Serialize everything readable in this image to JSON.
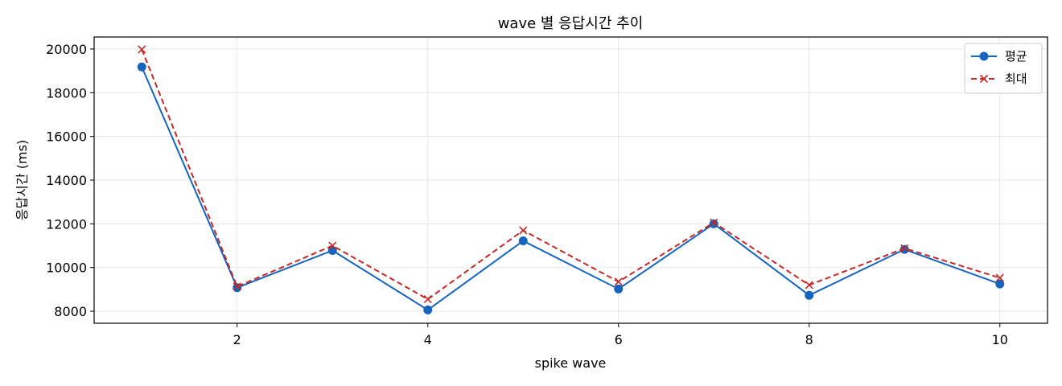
{
  "chart_data": {
    "type": "line",
    "title": "wave 별 응답시간 추이",
    "xlabel": "spike wave",
    "ylabel": "응답시간 (ms)",
    "x": [
      1,
      2,
      3,
      4,
      5,
      6,
      7,
      8,
      9,
      10
    ],
    "xlim": [
      0.5,
      10.5
    ],
    "ylim": [
      7450,
      20550
    ],
    "xticks": [
      2,
      4,
      6,
      8,
      10
    ],
    "yticks": [
      8000,
      10000,
      12000,
      14000,
      16000,
      18000,
      20000
    ],
    "grid": true,
    "legend_position": "top-right",
    "series": [
      {
        "name": "평균",
        "values": [
          19180,
          9080,
          10780,
          8060,
          11220,
          9020,
          12000,
          8730,
          10830,
          9250
        ],
        "color": "#1565c0",
        "line_style": "solid",
        "marker": "circle"
      },
      {
        "name": "최대",
        "values": [
          19980,
          9130,
          11000,
          8550,
          11700,
          9350,
          12060,
          9200,
          10880,
          9530
        ],
        "color": "#c62828",
        "line_style": "dashed",
        "marker": "x"
      }
    ]
  }
}
